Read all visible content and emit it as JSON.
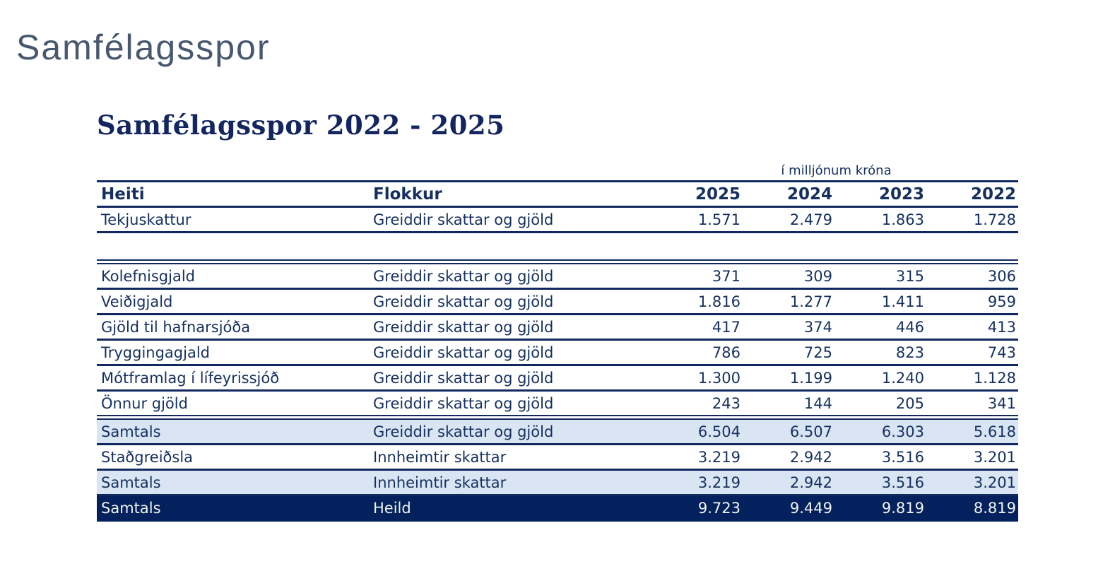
{
  "page": {
    "title": "Samfélagsspor"
  },
  "table": {
    "title": "Samfélagsspor 2022 - 2025",
    "unit_note": "í milljónum króna",
    "columns": [
      "Heiti",
      "Flokkur",
      "2025",
      "2024",
      "2023",
      "2022"
    ],
    "rows": [
      {
        "style": "normal",
        "heiti": "Tekjuskattur",
        "flokkur": "Greiddir skattar og gjöld",
        "v2025": "1.571",
        "v2024": "2.479",
        "v2023": "1.863",
        "v2022": "1.728"
      },
      {
        "style": "spacer",
        "heiti": "",
        "flokkur": "",
        "v2025": "",
        "v2024": "",
        "v2023": "",
        "v2022": ""
      },
      {
        "style": "normal",
        "double_top": true,
        "heiti": "Kolefnisgjald",
        "flokkur": "Greiddir skattar og gjöld",
        "v2025": "371",
        "v2024": "309",
        "v2023": "315",
        "v2022": "306"
      },
      {
        "style": "normal",
        "heiti": "Veiðigjald",
        "flokkur": "Greiddir skattar og gjöld",
        "v2025": "1.816",
        "v2024": "1.277",
        "v2023": "1.411",
        "v2022": "959"
      },
      {
        "style": "normal",
        "heiti": "Gjöld til hafnarsjóða",
        "flokkur": "Greiddir skattar og gjöld",
        "v2025": "417",
        "v2024": "374",
        "v2023": "446",
        "v2022": "413"
      },
      {
        "style": "normal",
        "heiti": "Tryggingagjald",
        "flokkur": "Greiddir skattar og gjöld",
        "v2025": "786",
        "v2024": "725",
        "v2023": "823",
        "v2022": "743"
      },
      {
        "style": "normal",
        "heiti": "Mótframlag í lífeyrissjóð",
        "flokkur": "Greiddir skattar og gjöld",
        "v2025": "1.300",
        "v2024": "1.199",
        "v2023": "1.240",
        "v2022": "1.128"
      },
      {
        "style": "normal",
        "heiti": "Önnur gjöld",
        "flokkur": "Greiddir skattar og gjöld",
        "v2025": "243",
        "v2024": "144",
        "v2023": "205",
        "v2022": "341"
      },
      {
        "style": "subtotal",
        "double_top": true,
        "heiti": "Samtals",
        "flokkur": "Greiddir skattar og gjöld",
        "v2025": "6.504",
        "v2024": "6.507",
        "v2023": "6.303",
        "v2022": "5.618"
      },
      {
        "style": "normal",
        "heiti": "Staðgreiðsla",
        "flokkur": "Innheimtir skattar",
        "v2025": "3.219",
        "v2024": "2.942",
        "v2023": "3.516",
        "v2022": "3.201"
      },
      {
        "style": "subtotal",
        "heiti": "Samtals",
        "flokkur": "Innheimtir skattar",
        "v2025": "3.219",
        "v2024": "2.942",
        "v2023": "3.516",
        "v2022": "3.201"
      },
      {
        "style": "total",
        "heiti": "Samtals",
        "flokkur": "Heild",
        "v2025": "9.723",
        "v2024": "9.449",
        "v2023": "9.819",
        "v2022": "8.819"
      }
    ],
    "colors": {
      "navy": "#12295f",
      "subtotal_bg": "#d9e5f3",
      "total_bg": "#03215c",
      "total_text": "#f2f3ee",
      "page_title": "#47586f"
    }
  }
}
